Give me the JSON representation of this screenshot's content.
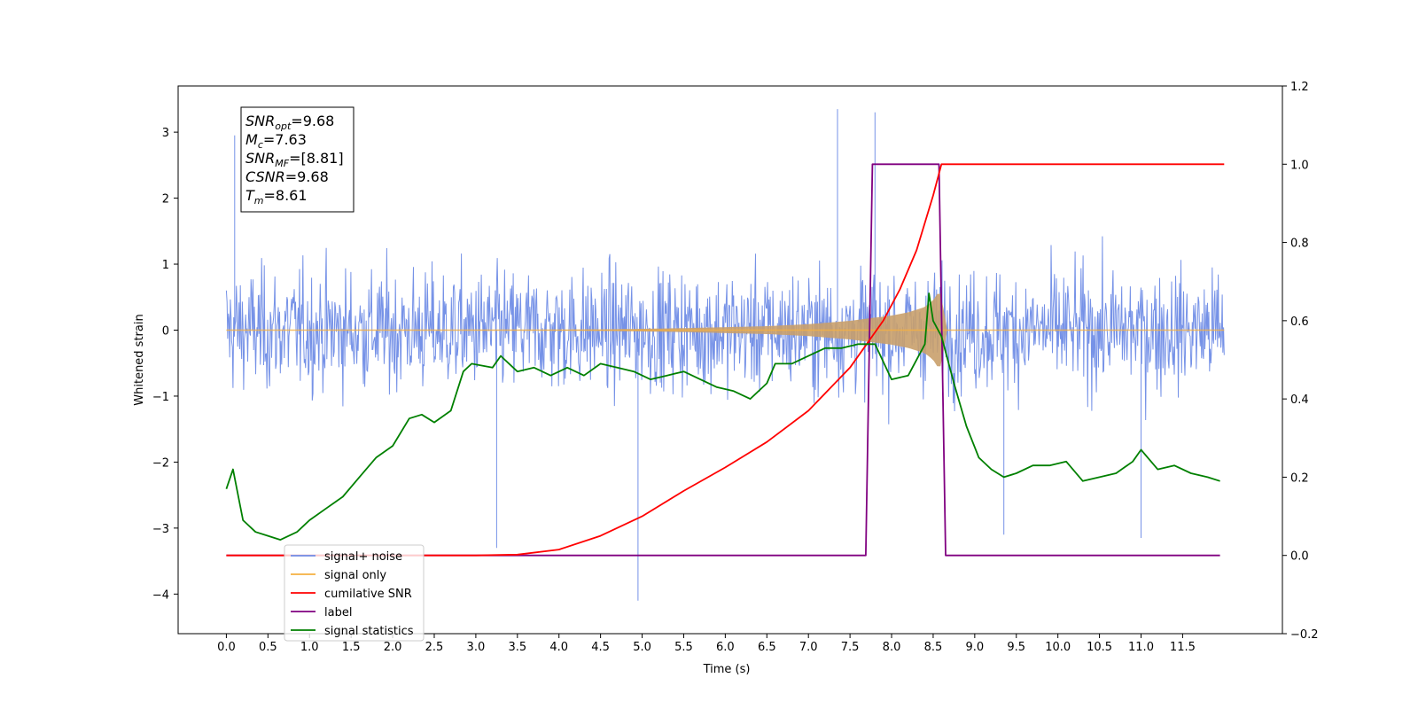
{
  "chart_data": {
    "type": "line",
    "xlabel": "Time (s)",
    "ylabel": "Whitened strain",
    "xlim": [
      -0.58,
      12.7
    ],
    "ylim": [
      -4.6,
      3.7
    ],
    "y2lim": [
      -0.2,
      1.2
    ],
    "x_ticks": [
      0.0,
      0.5,
      1.0,
      1.5,
      2.0,
      2.5,
      3.0,
      3.5,
      4.0,
      4.5,
      5.0,
      5.5,
      6.0,
      6.5,
      7.0,
      7.5,
      8.0,
      8.5,
      9.0,
      9.5,
      10.0,
      10.5,
      11.0,
      11.5
    ],
    "x_tick_labels": [
      "0.0",
      "0.5",
      "1.0",
      "1.5",
      "2.0",
      "2.5",
      "3.0",
      "3.5",
      "4.0",
      "4.5",
      "5.0",
      "5.5",
      "6.0",
      "6.5",
      "7.0",
      "7.5",
      "8.0",
      "8.5",
      "9.0",
      "9.5",
      "10.0",
      "10.5",
      "11.0",
      "11.5"
    ],
    "y_ticks": [
      3,
      2,
      1,
      0,
      -1,
      -2,
      -3,
      -4
    ],
    "y_tick_labels": [
      "3",
      "2",
      "1",
      "0",
      "−1",
      "−2",
      "−3",
      "−4"
    ],
    "y2_ticks": [
      1.2,
      1.0,
      0.8,
      0.6,
      0.4,
      0.2,
      0.0,
      -0.2
    ],
    "y2_tick_labels": [
      "1.2",
      "1.0",
      "0.8",
      "0.6",
      "0.4",
      "0.2",
      "0.0",
      "−0.2"
    ],
    "grid": false,
    "legend_position": "lower-left",
    "legend": [
      {
        "label": "signal+ noise",
        "color": "#6f8ce6"
      },
      {
        "label": "signal only",
        "color": "#f5b041"
      },
      {
        "label": "cumilative SNR",
        "color": "#ff0000"
      },
      {
        "label": "label",
        "color": "#800080"
      },
      {
        "label": "signal statistics",
        "color": "#008000"
      }
    ],
    "annotation_lines": [
      {
        "var": "SNR",
        "sub": "opt",
        "value": "=9.68"
      },
      {
        "var": "M",
        "sub": "c",
        "value": "=7.63"
      },
      {
        "var": "SNR",
        "sub": "MF",
        "value": "=[8.81]"
      },
      {
        "var": "CSNR",
        "sub": "",
        "value": "=9.68"
      },
      {
        "var": "T",
        "sub": "m",
        "value": "=8.61"
      }
    ],
    "series": [
      {
        "name": "signal+ noise",
        "axis": "left",
        "color": "#6f8ce6",
        "style": "noise-band",
        "x_range": [
          0.0,
          12.0
        ],
        "typical_range": [
          -1.5,
          1.5
        ],
        "notable_extrema": [
          [
            0.1,
            2.95
          ],
          [
            7.35,
            3.35
          ],
          [
            7.8,
            3.3
          ],
          [
            3.25,
            -3.3
          ],
          [
            4.95,
            -4.1
          ],
          [
            11.0,
            -3.15
          ],
          [
            9.35,
            -3.1
          ]
        ]
      },
      {
        "name": "signal only",
        "axis": "left",
        "color": "#f5b041",
        "style": "chirp-envelope",
        "x": [
          0.0,
          3.5,
          4.5,
          5.5,
          6.5,
          7.0,
          7.5,
          7.8,
          8.0,
          8.2,
          8.4,
          8.5,
          8.55,
          8.61,
          8.65,
          12.0
        ],
        "amplitude": [
          0.0,
          0.002,
          0.01,
          0.03,
          0.06,
          0.09,
          0.14,
          0.19,
          0.22,
          0.27,
          0.35,
          0.45,
          0.55,
          0.55,
          0.0,
          0.0
        ]
      },
      {
        "name": "cumilative SNR",
        "axis": "right",
        "color": "#ff0000",
        "x": [
          0.0,
          3.0,
          3.5,
          4.0,
          4.5,
          5.0,
          5.5,
          6.0,
          6.5,
          7.0,
          7.5,
          7.7,
          7.9,
          8.1,
          8.3,
          8.5,
          8.6,
          8.62,
          12.0
        ],
        "y": [
          0.0,
          0.0,
          0.002,
          0.015,
          0.05,
          0.1,
          0.165,
          0.225,
          0.29,
          0.37,
          0.48,
          0.54,
          0.6,
          0.68,
          0.78,
          0.92,
          1.0,
          1.0,
          1.0
        ]
      },
      {
        "name": "label",
        "axis": "right",
        "color": "#800080",
        "x": [
          0.0,
          7.69,
          7.77,
          8.57,
          8.65,
          11.95
        ],
        "y": [
          0.0,
          0.0,
          1.0,
          1.0,
          0.0,
          0.0
        ]
      },
      {
        "name": "signal statistics",
        "axis": "right",
        "color": "#008000",
        "x": [
          0.0,
          0.08,
          0.2,
          0.35,
          0.5,
          0.65,
          0.85,
          1.0,
          1.2,
          1.4,
          1.6,
          1.8,
          2.0,
          2.2,
          2.35,
          2.5,
          2.7,
          2.85,
          2.95,
          3.2,
          3.3,
          3.5,
          3.7,
          3.9,
          4.1,
          4.3,
          4.5,
          4.7,
          4.9,
          5.1,
          5.3,
          5.5,
          5.7,
          5.9,
          6.1,
          6.3,
          6.5,
          6.6,
          6.8,
          7.0,
          7.2,
          7.4,
          7.6,
          7.8,
          8.0,
          8.2,
          8.4,
          8.45,
          8.5,
          8.6,
          8.75,
          8.9,
          9.05,
          9.2,
          9.35,
          9.5,
          9.7,
          9.9,
          10.1,
          10.3,
          10.5,
          10.7,
          10.9,
          11.0,
          11.2,
          11.4,
          11.6,
          11.8,
          11.95
        ],
        "y": [
          0.17,
          0.22,
          0.09,
          0.06,
          0.05,
          0.04,
          0.06,
          0.09,
          0.12,
          0.15,
          0.2,
          0.25,
          0.28,
          0.35,
          0.36,
          0.34,
          0.37,
          0.47,
          0.49,
          0.48,
          0.51,
          0.47,
          0.48,
          0.46,
          0.48,
          0.46,
          0.49,
          0.48,
          0.47,
          0.45,
          0.46,
          0.47,
          0.45,
          0.43,
          0.42,
          0.4,
          0.44,
          0.49,
          0.49,
          0.51,
          0.53,
          0.53,
          0.54,
          0.54,
          0.45,
          0.46,
          0.54,
          0.67,
          0.6,
          0.56,
          0.44,
          0.33,
          0.25,
          0.22,
          0.2,
          0.21,
          0.23,
          0.23,
          0.24,
          0.19,
          0.2,
          0.21,
          0.24,
          0.27,
          0.22,
          0.23,
          0.21,
          0.2,
          0.19
        ]
      }
    ]
  }
}
